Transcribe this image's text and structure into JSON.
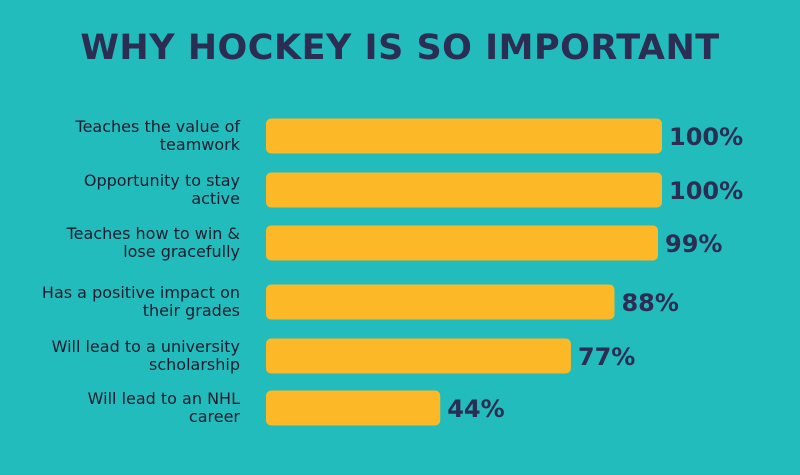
{
  "chart_data": {
    "type": "bar",
    "orientation": "horizontal",
    "title": "WHY HOCKEY IS SO IMPORTANT",
    "categories": [
      [
        "Teaches the value of",
        "teamwork"
      ],
      [
        "Opportunity to stay",
        "active"
      ],
      [
        "Teaches how to win &",
        "lose gracefully"
      ],
      [
        "Has a positive impact on",
        "their grades"
      ],
      [
        "Will lead to a university",
        "scholarship"
      ],
      [
        "Will lead to an NHL",
        "career"
      ]
    ],
    "values": [
      100,
      100,
      99,
      88,
      77,
      44
    ],
    "value_labels": [
      "100%",
      "100%",
      "99%",
      "88%",
      "77%",
      "44%"
    ],
    "xlim": [
      0,
      100
    ],
    "grid": false,
    "legend": "none",
    "colors": {
      "background": "#22bcbc",
      "bar": "#fdb827",
      "title": "#2b2d52",
      "label": "#1c1c2e",
      "value": "#2b2d52"
    }
  }
}
